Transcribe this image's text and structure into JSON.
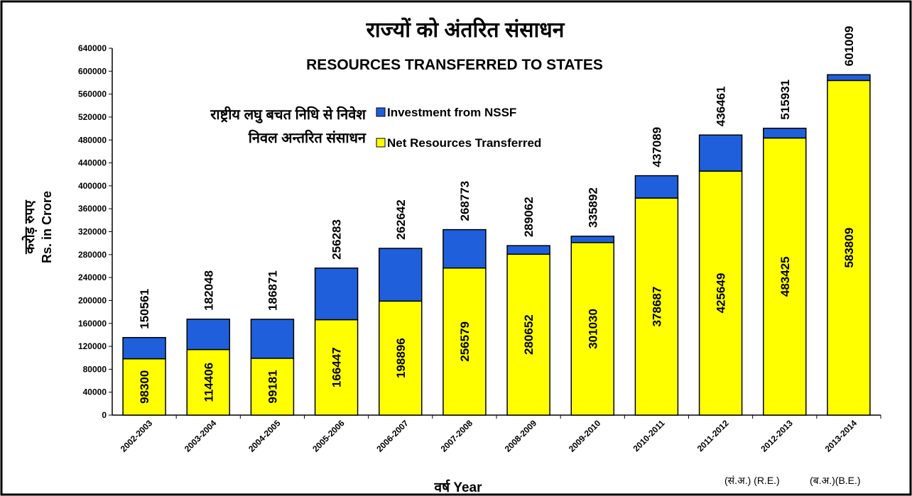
{
  "chart_data": {
    "type": "stacked_bar",
    "title_hi": "राज्यों को अंतरित संसाधन",
    "title": "RESOURCES TRANSFERRED TO STATES",
    "y_axis_label_hi": "करोड़ रुपए",
    "y_axis_label": "Rs. in Crore",
    "x_axis_label": "वर्ष Year",
    "annotations": [
      "(सं.अ.) (R.E.)",
      "(ब.अ.)(B.E.)"
    ],
    "categories": [
      "2002-2003",
      "2003-2004",
      "2004-2005",
      "2005-2006",
      "2006-2007",
      "2007-2008",
      "2008-2009",
      "2009-2010",
      "2010-2011",
      "2011-2012",
      "2012-2013",
      "2013-2014"
    ],
    "series": [
      {
        "name": "Net Resources Transferred",
        "name_hi": "निवल अन्तरित संसाधन",
        "color": "#ffff00",
        "values": [
          98300,
          114406,
          99181,
          166447,
          198896,
          256579,
          280652,
          301030,
          378687,
          425649,
          483425,
          583809
        ]
      },
      {
        "name": "Investment from NSSF",
        "name_hi": "राष्ट्रीय लघु बचत निधि से निवेश",
        "color": "#1f5fdc",
        "values": [
          37000,
          53000,
          68000,
          90000,
          92000,
          67000,
          15000,
          11000,
          39000,
          63000,
          17000,
          10000
        ]
      }
    ],
    "top_labels": [
      150561,
      182048,
      186871,
      256283,
      262642,
      268773,
      289062,
      335892,
      437089,
      436461,
      515931,
      601009
    ],
    "ylim": [
      0,
      640000
    ],
    "yticks": [
      0,
      40000,
      80000,
      120000,
      160000,
      200000,
      240000,
      280000,
      320000,
      360000,
      400000,
      440000,
      480000,
      520000,
      560000,
      600000,
      640000
    ],
    "grid": false
  }
}
